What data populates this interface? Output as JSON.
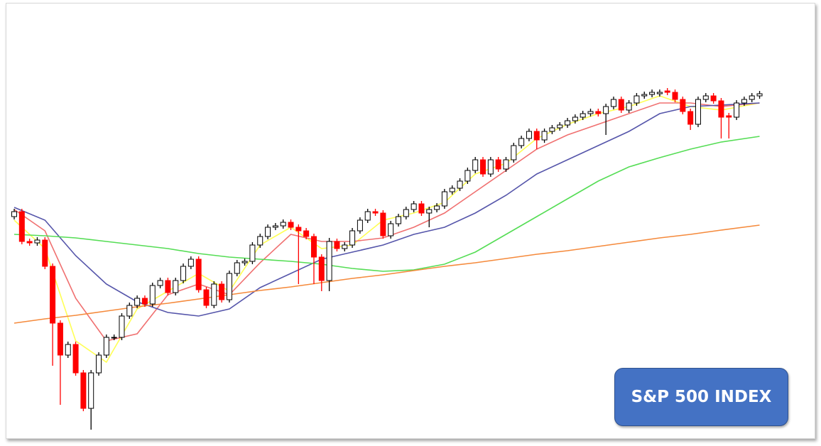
{
  "chart_data": {
    "type": "candlestick",
    "title": "S&P 500 INDEX",
    "ylim": [
      0,
      610
    ],
    "up_color": "#ffffff",
    "down_color": "#ff0000",
    "edge_color": "#000000",
    "open": [
      310,
      317,
      275,
      273,
      277,
      240,
      160,
      115,
      130,
      90,
      40,
      90,
      115,
      140,
      140,
      170,
      185,
      195,
      187,
      213,
      220,
      203,
      220,
      240,
      250,
      207,
      185,
      215,
      193,
      230,
      245,
      247,
      270,
      282,
      295,
      297,
      302,
      295,
      290,
      282,
      253,
      220,
      275,
      265,
      270,
      290,
      305,
      317,
      315,
      283,
      300,
      310,
      320,
      328,
      315,
      320,
      325,
      345,
      350,
      360,
      375,
      390,
      370,
      390,
      377,
      390,
      410,
      420,
      430,
      418,
      430,
      435,
      439,
      445,
      450,
      455,
      458,
      455,
      465,
      475,
      460,
      470,
      480,
      482,
      483,
      487,
      485,
      475,
      458,
      440,
      475,
      480,
      473,
      452,
      450,
      470,
      475,
      480
    ],
    "high": [
      321,
      321,
      279,
      281,
      281,
      244,
      164,
      134,
      134,
      94,
      94,
      119,
      144,
      144,
      174,
      189,
      199,
      199,
      217,
      224,
      224,
      224,
      244,
      254,
      254,
      211,
      219,
      219,
      234,
      249,
      251,
      274,
      286,
      299,
      301,
      306,
      306,
      299,
      294,
      286,
      257,
      280,
      279,
      274,
      294,
      309,
      321,
      321,
      319,
      304,
      314,
      324,
      332,
      332,
      324,
      329,
      349,
      354,
      364,
      379,
      394,
      394,
      394,
      394,
      394,
      414,
      424,
      434,
      434,
      434,
      439,
      443,
      449,
      454,
      459,
      462,
      462,
      469,
      479,
      479,
      474,
      484,
      486,
      489,
      489,
      491,
      489,
      479,
      462,
      479,
      484,
      484,
      477,
      456,
      474,
      479,
      484,
      487
    ],
    "low": [
      306,
      271,
      269,
      269,
      236,
      100,
      45,
      111,
      86,
      36,
      10,
      86,
      111,
      136,
      136,
      166,
      181,
      183,
      183,
      209,
      199,
      199,
      216,
      236,
      203,
      181,
      181,
      189,
      189,
      226,
      241,
      243,
      266,
      278,
      291,
      293,
      291,
      215,
      278,
      215,
      205,
      205,
      261,
      261,
      266,
      286,
      301,
      311,
      279,
      279,
      296,
      306,
      316,
      311,
      295,
      316,
      321,
      341,
      346,
      356,
      371,
      366,
      366,
      373,
      373,
      386,
      406,
      416,
      405,
      414,
      426,
      431,
      435,
      441,
      446,
      451,
      451,
      425,
      461,
      456,
      456,
      466,
      476,
      478,
      479,
      481,
      471,
      454,
      432,
      436,
      471,
      469,
      420,
      420,
      446,
      466,
      471,
      476
    ],
    "close": [
      317,
      275,
      273,
      277,
      240,
      160,
      115,
      130,
      90,
      40,
      90,
      115,
      140,
      140,
      170,
      185,
      195,
      187,
      213,
      220,
      203,
      220,
      240,
      250,
      207,
      185,
      215,
      193,
      230,
      245,
      247,
      270,
      282,
      295,
      297,
      302,
      295,
      290,
      282,
      253,
      220,
      275,
      265,
      270,
      290,
      305,
      317,
      315,
      283,
      300,
      310,
      320,
      328,
      315,
      320,
      325,
      345,
      350,
      360,
      375,
      390,
      370,
      390,
      377,
      390,
      410,
      420,
      430,
      418,
      430,
      435,
      439,
      445,
      450,
      455,
      458,
      455,
      465,
      475,
      460,
      470,
      480,
      482,
      485,
      485,
      485,
      475,
      458,
      440,
      475,
      480,
      473,
      450,
      450,
      470,
      475,
      480,
      483
    ],
    "lines": [
      {
        "color": "#ffff55",
        "x": [
          0,
          4,
          8,
          12,
          16,
          20,
          24,
          28,
          32,
          36,
          40,
          44,
          48,
          52,
          56,
          60,
          64,
          68,
          72,
          76,
          80,
          84,
          88,
          92,
          97
        ],
        "values": [
          305,
          265,
          135,
          105,
          180,
          205,
          230,
          205,
          270,
          295,
          265,
          270,
          305,
          315,
          330,
          370,
          385,
          420,
          440,
          455,
          465,
          480,
          465,
          460,
          470
        ]
      },
      {
        "color": "#f07070",
        "x": [
          0,
          4,
          8,
          12,
          16,
          20,
          24,
          28,
          32,
          36,
          40,
          44,
          48,
          52,
          56,
          60,
          64,
          68,
          72,
          76,
          80,
          84,
          88,
          92,
          97
        ],
        "values": [
          320,
          290,
          195,
          135,
          145,
          200,
          215,
          200,
          245,
          285,
          275,
          275,
          280,
          295,
          315,
          345,
          375,
          405,
          425,
          440,
          455,
          470,
          470,
          465,
          470
        ]
      },
      {
        "color": "#5555aa",
        "x": [
          0,
          4,
          8,
          12,
          16,
          20,
          24,
          28,
          32,
          36,
          40,
          44,
          48,
          52,
          56,
          60,
          64,
          68,
          72,
          76,
          80,
          84,
          88,
          92,
          97
        ],
        "values": [
          323,
          305,
          255,
          215,
          190,
          175,
          170,
          180,
          210,
          230,
          250,
          260,
          270,
          285,
          295,
          315,
          340,
          370,
          390,
          410,
          430,
          455,
          465,
          467,
          470
        ]
      },
      {
        "color": "#55dd55",
        "x": [
          0,
          4,
          8,
          12,
          16,
          20,
          24,
          28,
          32,
          36,
          40,
          44,
          48,
          52,
          56,
          60,
          64,
          68,
          72,
          76,
          80,
          84,
          88,
          92,
          97
        ],
        "values": [
          285,
          283,
          280,
          275,
          270,
          265,
          258,
          253,
          250,
          247,
          243,
          237,
          233,
          235,
          243,
          260,
          285,
          310,
          335,
          360,
          380,
          393,
          405,
          415,
          423
        ]
      },
      {
        "color": "#f58a3c",
        "x": [
          0,
          4,
          8,
          12,
          16,
          20,
          24,
          28,
          32,
          36,
          40,
          44,
          48,
          52,
          56,
          60,
          64,
          68,
          72,
          76,
          80,
          84,
          88,
          92,
          97
        ],
        "values": [
          160,
          166,
          171,
          177,
          183,
          188,
          194,
          200,
          206,
          211,
          217,
          223,
          228,
          234,
          240,
          245,
          251,
          257,
          262,
          268,
          274,
          280,
          285,
          291,
          298
        ]
      }
    ]
  }
}
